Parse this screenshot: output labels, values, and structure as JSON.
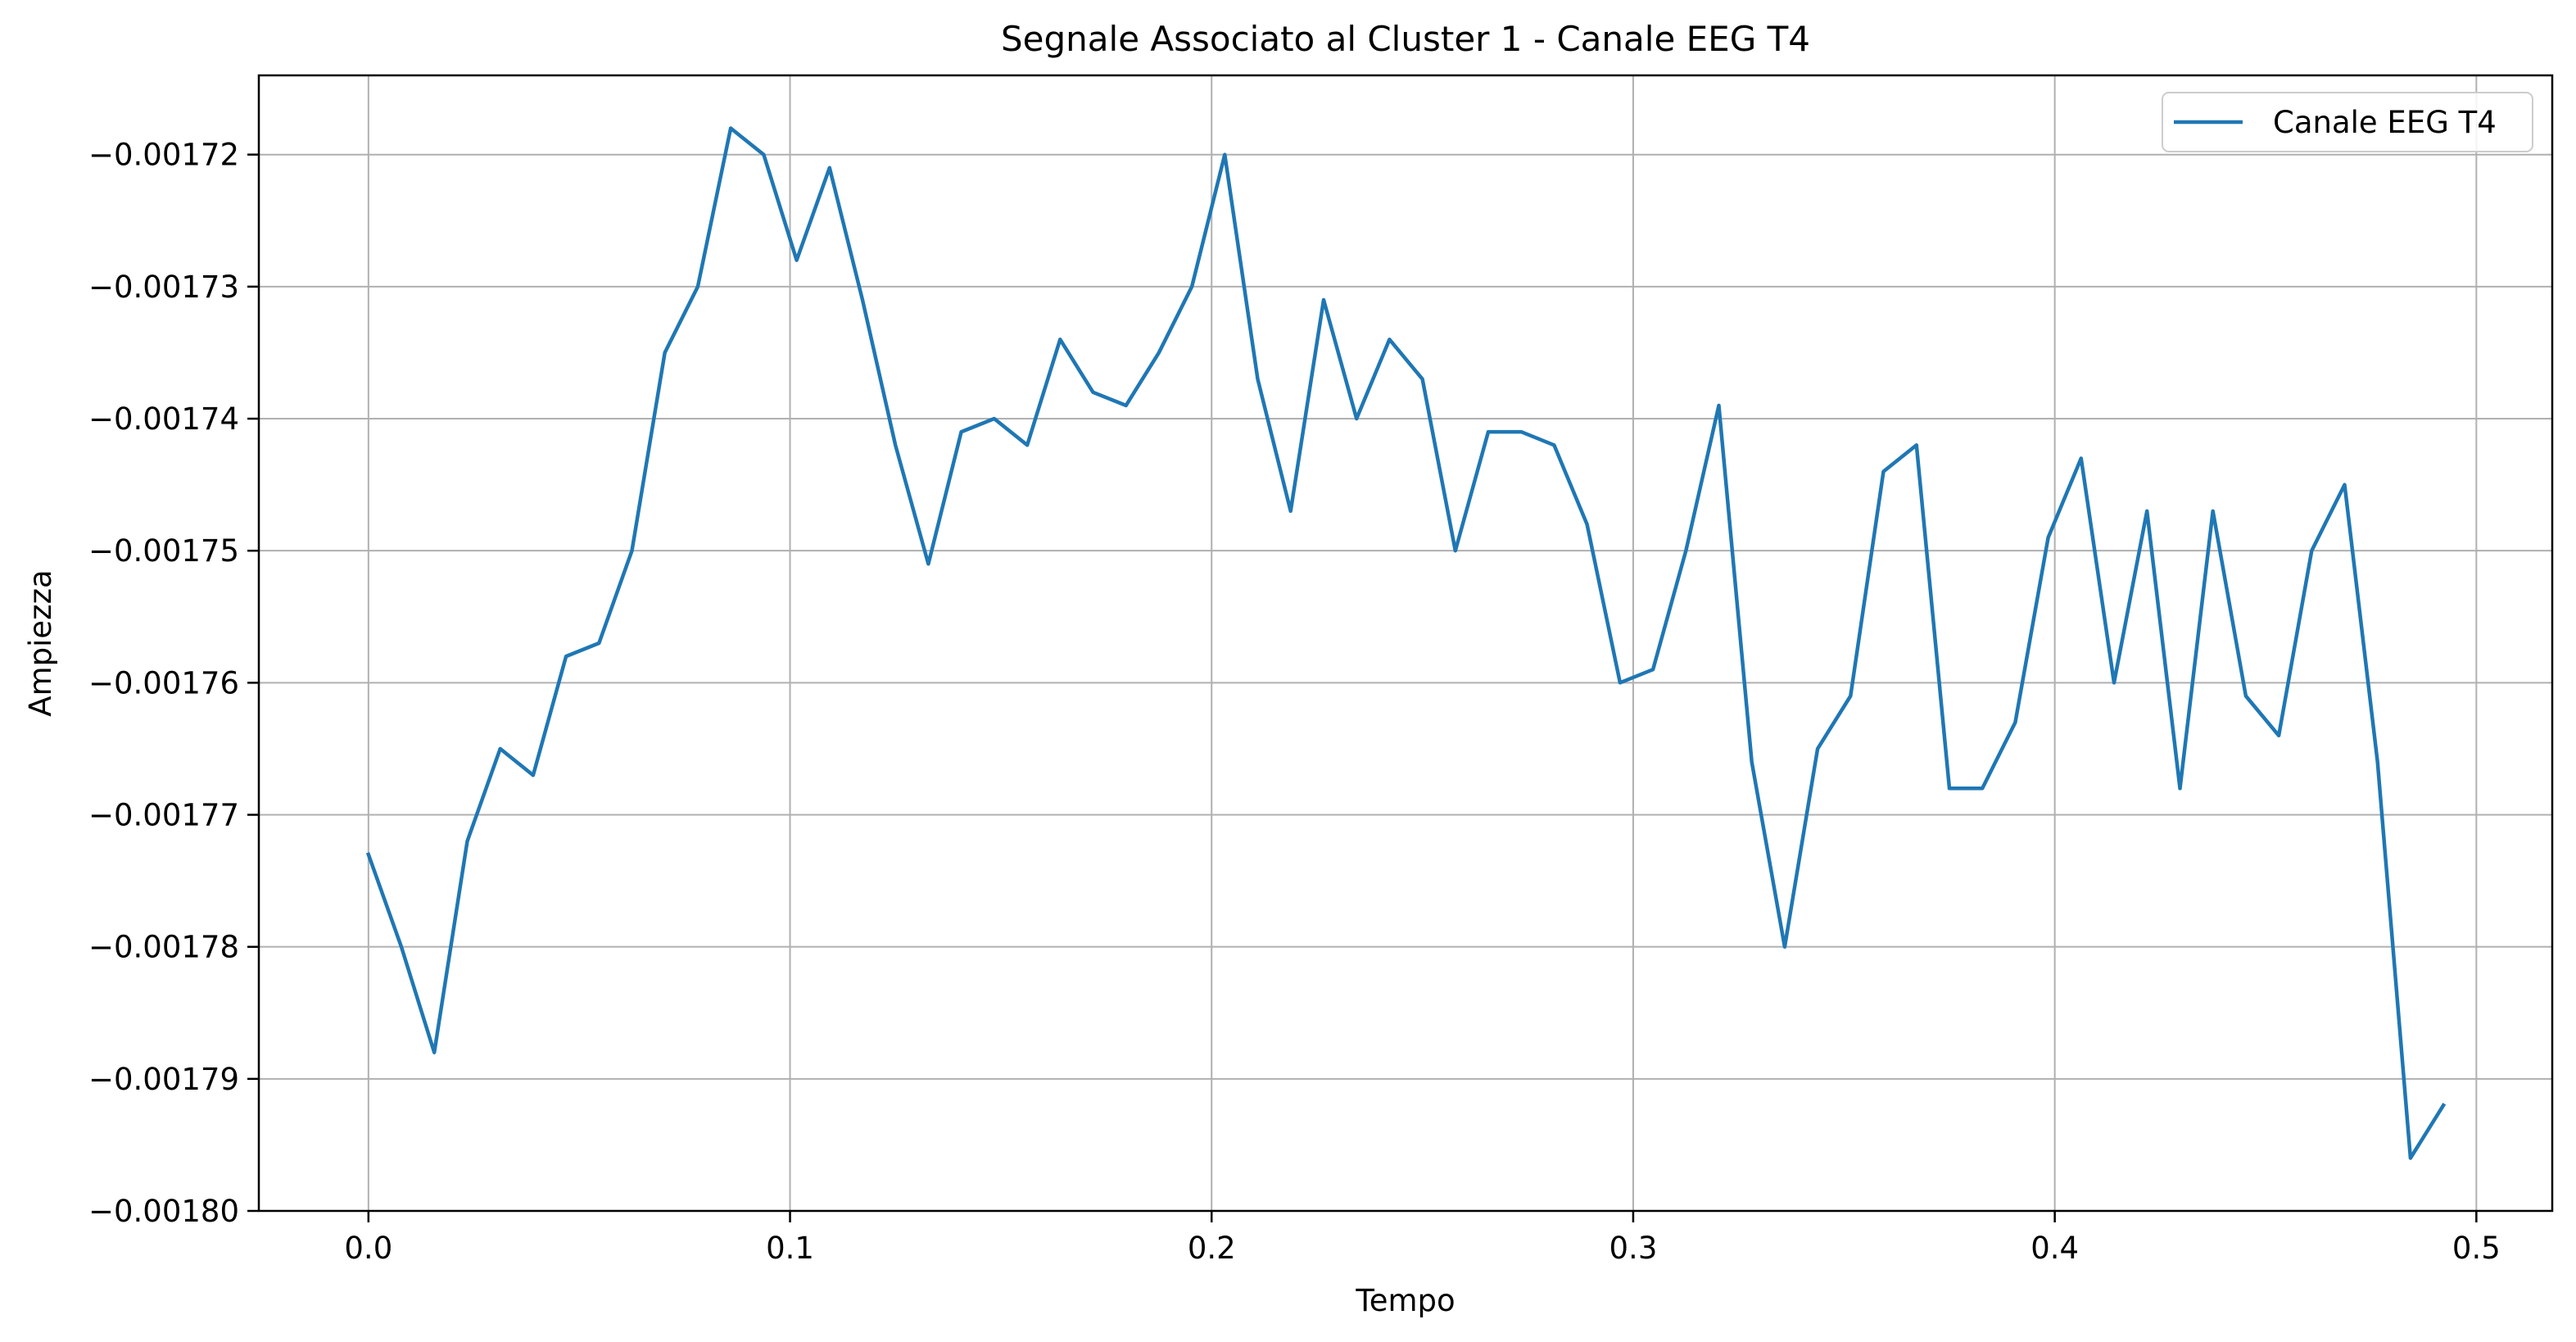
{
  "chart_data": {
    "type": "line",
    "title": "Segnale Associato al Cluster 1 - Canale EEG T4",
    "xlabel": "Tempo",
    "ylabel": "Ampiezza",
    "xlim": [
      -0.026,
      0.518
    ],
    "ylim": [
      -0.0018,
      -0.001714
    ],
    "xticks": [
      0.0,
      0.1,
      0.2,
      0.3,
      0.4,
      0.5
    ],
    "xtick_labels": [
      "0.0",
      "0.1",
      "0.2",
      "0.3",
      "0.4",
      "0.5"
    ],
    "yticks": [
      -0.00172,
      -0.00173,
      -0.00174,
      -0.00175,
      -0.00176,
      -0.00177,
      -0.00178,
      -0.00179,
      -0.0018
    ],
    "ytick_labels": [
      "−0.00172",
      "−0.00173",
      "−0.00174",
      "−0.00175",
      "−0.00176",
      "−0.00177",
      "−0.00178",
      "−0.00179",
      "−0.00180"
    ],
    "grid": true,
    "legend": {
      "position": "top-right",
      "entries": [
        "Canale EEG T4"
      ]
    },
    "series": [
      {
        "name": "Canale EEG T4",
        "color": "#1f77b4",
        "x": [
          0.0,
          0.0078125,
          0.015625,
          0.0234375,
          0.03125,
          0.0390625,
          0.046875,
          0.0546875,
          0.0625,
          0.0703125,
          0.078125,
          0.0859375,
          0.09375,
          0.1015625,
          0.109375,
          0.1171875,
          0.125,
          0.1328125,
          0.140625,
          0.1484375,
          0.15625,
          0.1640625,
          0.171875,
          0.1796875,
          0.1875,
          0.1953125,
          0.203125,
          0.2109375,
          0.21875,
          0.2265625,
          0.234375,
          0.2421875,
          0.25,
          0.2578125,
          0.265625,
          0.2734375,
          0.28125,
          0.2890625,
          0.296875,
          0.3046875,
          0.3125,
          0.3203125,
          0.328125,
          0.3359375,
          0.34375,
          0.3515625,
          0.359375,
          0.3671875,
          0.375,
          0.3828125,
          0.390625,
          0.3984375,
          0.40625,
          0.4140625,
          0.421875,
          0.4296875,
          0.4375,
          0.4453125,
          0.453125,
          0.4609375,
          0.46875,
          0.4765625,
          0.484375,
          0.4921875
        ],
        "y": [
          -0.001773,
          -0.00178,
          -0.001788,
          -0.001772,
          -0.001765,
          -0.001767,
          -0.001758,
          -0.001757,
          -0.00175,
          -0.001735,
          -0.00173,
          -0.001718,
          -0.00172,
          -0.001728,
          -0.001721,
          -0.001731,
          -0.001742,
          -0.001751,
          -0.001741,
          -0.00174,
          -0.001742,
          -0.001734,
          -0.001738,
          -0.001739,
          -0.001735,
          -0.00173,
          -0.00172,
          -0.001737,
          -0.001747,
          -0.001731,
          -0.00174,
          -0.001734,
          -0.001737,
          -0.00175,
          -0.001741,
          -0.001741,
          -0.001742,
          -0.001748,
          -0.00176,
          -0.001759,
          -0.00175,
          -0.001739,
          -0.001766,
          -0.00178,
          -0.001765,
          -0.001761,
          -0.001744,
          -0.001742,
          -0.001768,
          -0.001768,
          -0.001763,
          -0.001749,
          -0.001743,
          -0.00176,
          -0.001747,
          -0.001768,
          -0.001747,
          -0.001761,
          -0.001764,
          -0.00175,
          -0.001745,
          -0.001766,
          -0.001796,
          -0.001792
        ]
      }
    ]
  }
}
